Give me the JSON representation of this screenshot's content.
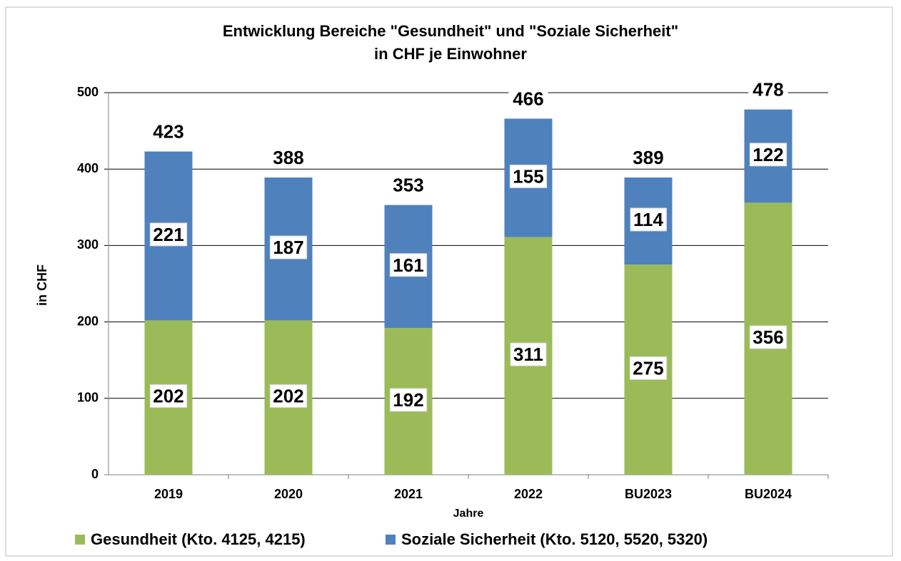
{
  "chart_data": {
    "type": "stacked_bar",
    "title": "Entwicklung Bereiche \"Gesundheit\" und \"Soziale Sicherheit\"",
    "subtitle": "in CHF je Einwohner",
    "y_label": "in CHF",
    "x_label": "Jahre",
    "categories": [
      "2019",
      "2020",
      "2021",
      "2022",
      "BU2023",
      "BU2024"
    ],
    "series": [
      {
        "name": "Gesundheit (Kto. 4125, 4215)",
        "color": "#9bbb59",
        "values": [
          202,
          202,
          192,
          311,
          275,
          356
        ]
      },
      {
        "name": "Soziale Sicherheit (Kto. 5120, 5520, 5320)",
        "color": "#4f81bd",
        "values": [
          221,
          187,
          161,
          155,
          114,
          122
        ]
      }
    ],
    "totals": [
      423,
      388,
      353,
      466,
      389,
      478
    ],
    "ylim": [
      0,
      500
    ],
    "yticks": [
      0,
      100,
      200,
      300,
      400,
      500
    ],
    "grid": true,
    "legend": "bottom"
  }
}
